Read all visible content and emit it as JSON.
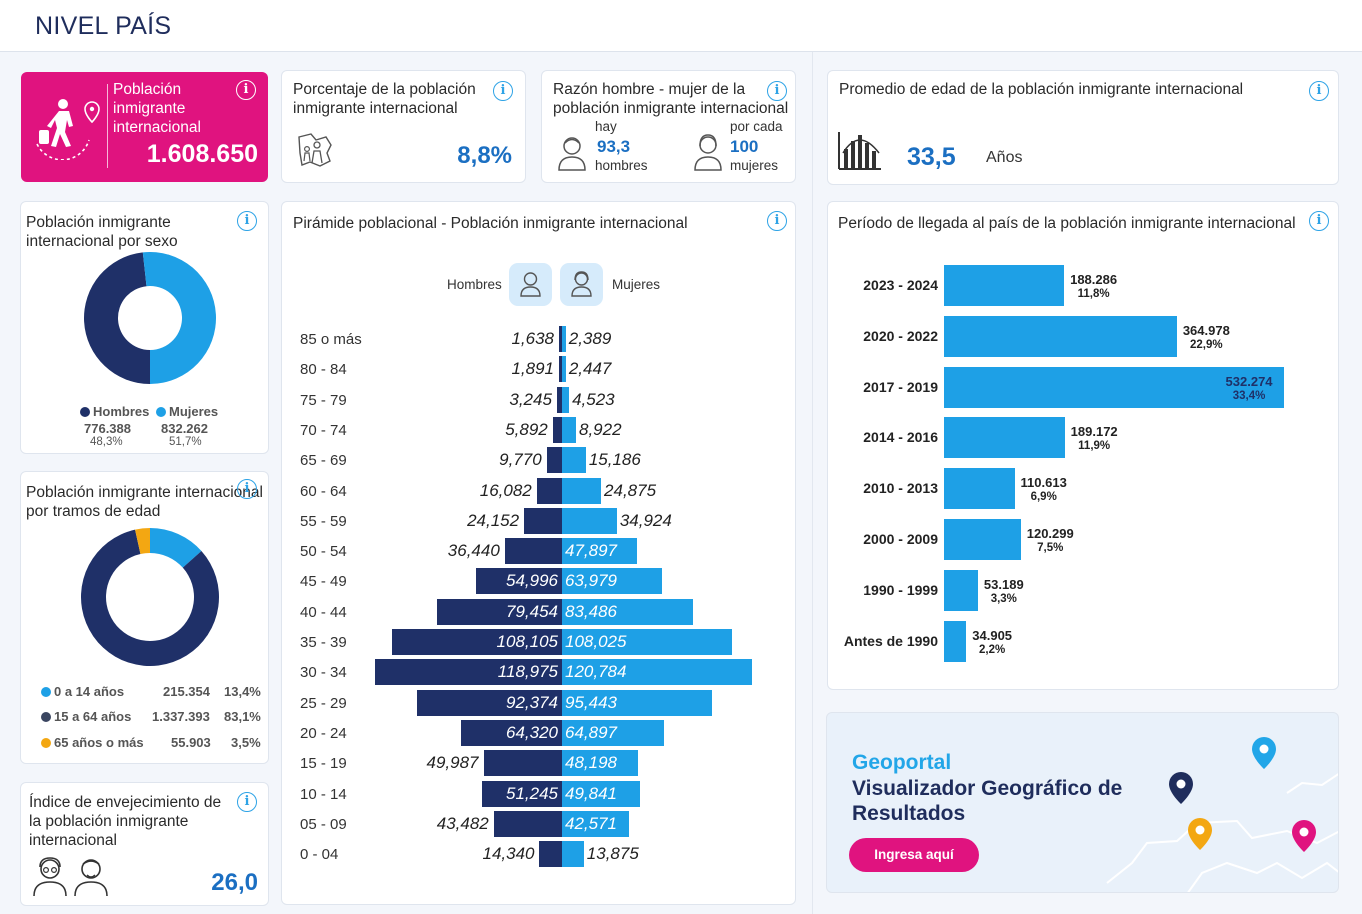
{
  "header": {
    "title": "NIVEL PAÍS"
  },
  "poblacion": {
    "title": "Población inmigrante internacional",
    "value": "1.608.650",
    "icon": "migrant-person-icon"
  },
  "porcentaje": {
    "title": "Porcentaje de la población inmigrante internacional",
    "value": "8,8%",
    "icon": "world-people-icon"
  },
  "razon": {
    "title": "Razón hombre - mujer de la población inmigrante internacional",
    "hay": "hay",
    "hombres_value": "93,3",
    "hombres": "hombres",
    "por_cada": "por cada",
    "mujeres_value": "100",
    "mujeres": "mujeres"
  },
  "promedio": {
    "title": "Promedio de edad de la población inmigrante internacional",
    "value": "33,5",
    "unit": "Años"
  },
  "sexo": {
    "title": "Población inmigrante internacional por sexo",
    "legend": [
      {
        "label": "Hombres",
        "value": "776.388",
        "pct": "48,3%",
        "color": "#1f3068"
      },
      {
        "label": "Mujeres",
        "value": "832.262",
        "pct": "51,7%",
        "color": "#1ea0e6"
      }
    ]
  },
  "edad": {
    "title": "Población inmigrante internacional por tramos de edad",
    "rows": [
      {
        "label": "0 a 14 años",
        "value": "215.354",
        "pct": "13,4%",
        "color": "#1ea0e6"
      },
      {
        "label": "15 a 64 años",
        "value": "1.337.393",
        "pct": "83,1%",
        "color": "#3a4560"
      },
      {
        "label": "65 años o más",
        "value": "55.903",
        "pct": "3,5%",
        "color": "#f3a712"
      }
    ]
  },
  "envejecimiento": {
    "title": "Índice de envejecimiento de la población inmigrante internacional",
    "value": "26,0"
  },
  "piramide": {
    "title": "Pirámide poblacional - Población inmigrante internacional",
    "hombres_label": "Hombres",
    "mujeres_label": "Mujeres"
  },
  "llegada": {
    "title": "Período de llegada al país de la población inmigrante internacional"
  },
  "geoportal": {
    "line1": "Geoportal",
    "line2": "Visualizador Geográfico de Resultados",
    "button": "Ingresa aquí"
  },
  "chart_data": [
    {
      "type": "bar",
      "title": "Pirámide poblacional - Población inmigrante internacional",
      "categories": [
        "85 o más",
        "80 - 84",
        "75 - 79",
        "70 - 74",
        "65 - 69",
        "60 - 64",
        "55 - 59",
        "50 - 54",
        "45 - 49",
        "40 - 44",
        "35 - 39",
        "30 - 34",
        "25 - 29",
        "20 - 24",
        "15 - 19",
        "10 - 14",
        "05 - 09",
        "0 - 04"
      ],
      "series": [
        {
          "name": "Hombres",
          "values": [
            1638,
            1891,
            3245,
            5892,
            9770,
            16082,
            24152,
            36440,
            54996,
            79454,
            108105,
            118975,
            92374,
            64320,
            49987,
            51245,
            43482,
            14340
          ],
          "labels": [
            "1,638",
            "1,891",
            "3,245",
            "5,892",
            "9,770",
            "16,082",
            "24,152",
            "36,440",
            "54,996",
            "79,454",
            "108,105",
            "118,975",
            "92,374",
            "64,320",
            "49,987",
            "51,245",
            "43,482",
            "14,340"
          ]
        },
        {
          "name": "Mujeres",
          "values": [
            2389,
            2447,
            4523,
            8922,
            15186,
            24875,
            34924,
            47897,
            63979,
            83486,
            108025,
            120784,
            95443,
            64897,
            48198,
            49841,
            42571,
            13875
          ],
          "labels": [
            "2,389",
            "2,447",
            "4,523",
            "8,922",
            "15,186",
            "24,875",
            "34,924",
            "47,897",
            "63,979",
            "83,486",
            "108,025",
            "120,784",
            "95,443",
            "64,897",
            "48,198",
            "49,841",
            "42,571",
            "13,875"
          ]
        }
      ]
    },
    {
      "type": "bar",
      "title": "Período de llegada al país de la población inmigrante internacional",
      "categories": [
        "2023 - 2024",
        "2020 - 2022",
        "2017 - 2019",
        "2014 - 2016",
        "2010 - 2013",
        "2000 - 2009",
        "1990 - 1999",
        "Antes de 1990"
      ],
      "values": [
        188286,
        364978,
        532274,
        189172,
        110613,
        120299,
        53189,
        34905
      ],
      "value_labels": [
        "188.286",
        "364.978",
        "532.274",
        "189.172",
        "110.613",
        "120.299",
        "53.189",
        "34.905"
      ],
      "pct_labels": [
        "11,8%",
        "22,9%",
        "33,4%",
        "11,9%",
        "6,9%",
        "7,5%",
        "3,3%",
        "2,2%"
      ]
    },
    {
      "type": "pie",
      "title": "Población inmigrante internacional por sexo",
      "categories": [
        "Hombres",
        "Mujeres"
      ],
      "values": [
        776388,
        832262
      ]
    },
    {
      "type": "pie",
      "title": "Población inmigrante internacional por tramos de edad",
      "categories": [
        "0 a 14 años",
        "15 a 64 años",
        "65 años o más"
      ],
      "values": [
        215354,
        1337393,
        55903
      ]
    }
  ]
}
